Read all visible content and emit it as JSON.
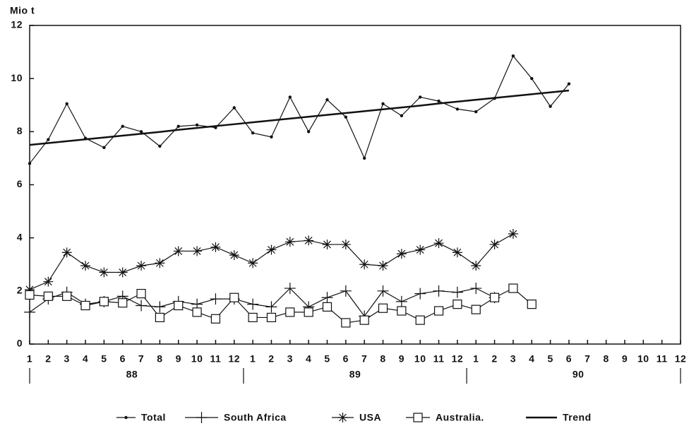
{
  "chart_data": {
    "type": "line",
    "y_label": "Mio t",
    "categories": [
      "1",
      "2",
      "3",
      "4",
      "5",
      "6",
      "7",
      "8",
      "9",
      "10",
      "11",
      "12",
      "1",
      "2",
      "3",
      "4",
      "5",
      "6",
      "7",
      "8",
      "9",
      "10",
      "11",
      "12",
      "1",
      "2",
      "3",
      "4",
      "5",
      "6",
      "7",
      "8",
      "9",
      "10",
      "11",
      "12"
    ],
    "groups": [
      {
        "label": "88",
        "start": 0,
        "end": 11
      },
      {
        "label": "89",
        "start": 12,
        "end": 23
      },
      {
        "label": "90",
        "start": 24,
        "end": 35
      }
    ],
    "ylim": [
      0,
      12
    ],
    "yticks": [
      0,
      2,
      4,
      6,
      8,
      10,
      12
    ],
    "series": [
      {
        "name": "Total",
        "color": "#111",
        "marker": "dot",
        "values": [
          6.8,
          7.7,
          9.05,
          7.75,
          7.4,
          8.2,
          8.0,
          7.45,
          8.2,
          8.25,
          8.15,
          8.9,
          7.95,
          7.8,
          9.3,
          8.0,
          9.2,
          8.55,
          7.0,
          9.05,
          8.6,
          9.3,
          9.15,
          8.85,
          8.75,
          9.25,
          10.85,
          10.0,
          8.95,
          9.8,
          null,
          null,
          null,
          null,
          null,
          null
        ]
      },
      {
        "name": "South Africa",
        "color": "#111",
        "marker": "plus",
        "values": [
          1.2,
          1.7,
          1.95,
          1.5,
          1.6,
          1.8,
          1.45,
          1.4,
          1.6,
          1.5,
          1.7,
          1.7,
          1.5,
          1.4,
          2.1,
          1.4,
          1.75,
          2.0,
          1.05,
          2.0,
          1.6,
          1.9,
          2.0,
          1.95,
          2.1,
          1.75,
          null,
          null,
          null,
          null,
          null,
          null,
          null,
          null,
          null,
          null
        ]
      },
      {
        "name": "USA",
        "color": "#111",
        "marker": "asterisk",
        "values": [
          2.05,
          2.35,
          3.45,
          2.95,
          2.7,
          2.7,
          2.95,
          3.05,
          3.5,
          3.5,
          3.65,
          3.35,
          3.05,
          3.55,
          3.85,
          3.9,
          3.75,
          3.75,
          3.0,
          2.95,
          3.4,
          3.55,
          3.8,
          3.45,
          2.95,
          3.75,
          4.15,
          null,
          null,
          null,
          null,
          null,
          null,
          null,
          null,
          null
        ]
      },
      {
        "name": "Australia.",
        "color": "#111",
        "marker": "square",
        "values": [
          1.85,
          1.8,
          1.8,
          1.45,
          1.6,
          1.55,
          1.9,
          1.0,
          1.45,
          1.2,
          0.95,
          1.75,
          1.0,
          1.0,
          1.2,
          1.2,
          1.4,
          0.8,
          0.9,
          1.35,
          1.25,
          0.9,
          1.25,
          1.5,
          1.3,
          1.75,
          2.1,
          1.5,
          null,
          null,
          null,
          null,
          null,
          null,
          null,
          null
        ]
      },
      {
        "name": "Trend",
        "color": "#111",
        "marker": "none",
        "width": 2.5,
        "values": [
          7.5,
          7.57,
          7.64,
          7.71,
          7.78,
          7.85,
          7.92,
          7.99,
          8.07,
          8.14,
          8.21,
          8.28,
          8.35,
          8.42,
          8.49,
          8.56,
          8.63,
          8.7,
          8.77,
          8.84,
          8.91,
          8.98,
          9.06,
          9.13,
          9.2,
          9.27,
          9.34,
          9.41,
          9.48,
          9.55,
          null,
          null,
          null,
          null,
          null,
          null
        ]
      }
    ]
  }
}
